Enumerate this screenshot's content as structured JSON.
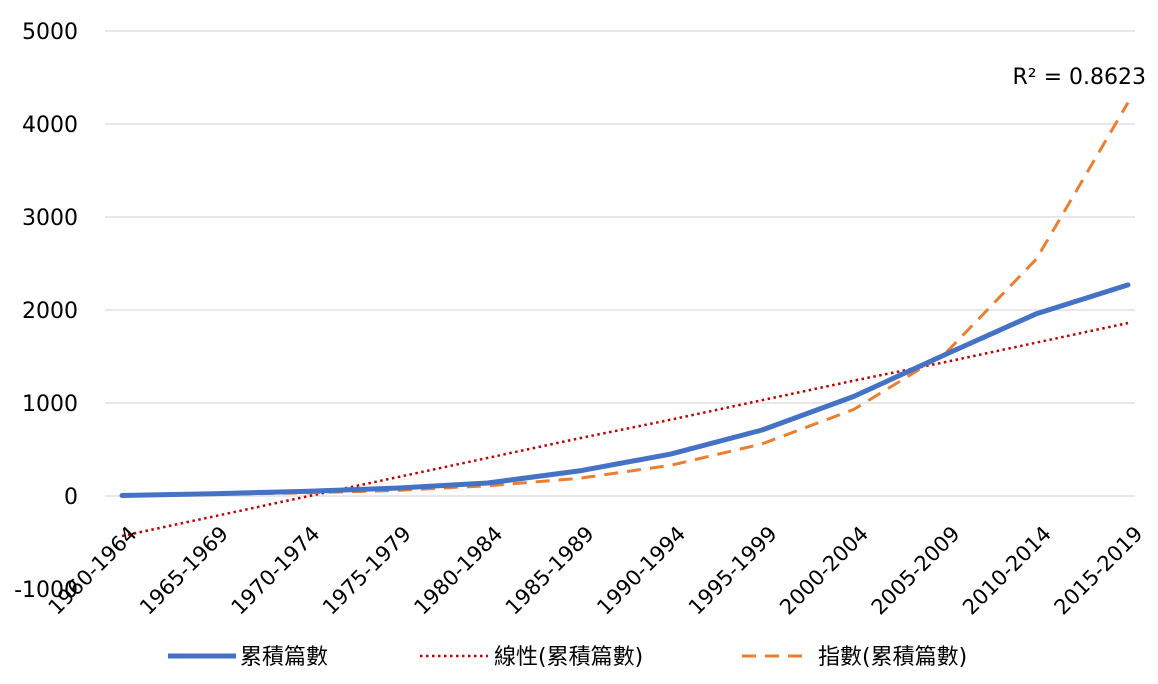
{
  "chart_data": {
    "type": "line",
    "title": "",
    "xlabel": "",
    "ylabel": "",
    "ylim": [
      -1000,
      5000
    ],
    "y_ticks": [
      "5000",
      "4000",
      "3000",
      "2000",
      "1000",
      "0",
      "-1000"
    ],
    "grid": true,
    "legend_position": "bottom",
    "categories": [
      "1960-1964",
      "1965-1969",
      "1970-1974",
      "1975-1979",
      "1980-1984",
      "1985-1989",
      "1990-1994",
      "1995-1999",
      "2000-2004",
      "2005-2009",
      "2010-2014",
      "2015-2019"
    ],
    "series": [
      {
        "name": "累積篇數",
        "style": "solid",
        "color": "#4472C4",
        "values": [
          5,
          25,
          50,
          85,
          140,
          270,
          450,
          710,
          1070,
          1520,
          1960,
          2270
        ]
      },
      {
        "name": "線性(累積篇數)",
        "style": "dotted",
        "color": "#C00000",
        "values": [
          -430,
          -220,
          -10,
          200,
          410,
          620,
          820,
          1030,
          1240,
          1440,
          1650,
          1860
        ]
      },
      {
        "name": "指數(累積篇數)",
        "style": "dashed",
        "color": "#ED7D31",
        "values": [
          10,
          18,
          33,
          60,
          110,
          190,
          330,
          560,
          930,
          1530,
          2550,
          4230
        ]
      }
    ],
    "annotations": [
      {
        "text": "R² = 0.8623",
        "series": "指數(累積篇數)"
      }
    ]
  }
}
